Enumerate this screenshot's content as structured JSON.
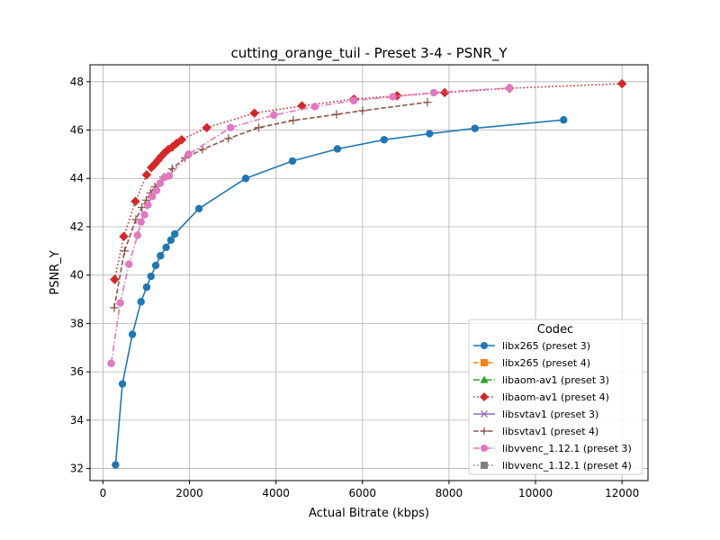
{
  "chart_data": {
    "type": "line",
    "title": "cutting_orange_tuil - Preset 3-4 - PSNR_Y",
    "xlabel": "Actual Bitrate (kbps)",
    "ylabel": "PSNR_Y",
    "xlim": [
      -300,
      12600
    ],
    "ylim": [
      31.5,
      48.7
    ],
    "x_ticks": [
      0,
      2000,
      4000,
      6000,
      8000,
      10000,
      12000
    ],
    "y_ticks": [
      32,
      34,
      36,
      38,
      40,
      42,
      44,
      46,
      48
    ],
    "grid": true,
    "legend": {
      "title": "Codec",
      "position": "lower right"
    },
    "series": [
      {
        "name": "libx265 (preset 3)",
        "color": "#1f77b4",
        "marker": "circle",
        "linestyle": "solid",
        "x": [
          290,
          450,
          680,
          880,
          1010,
          1110,
          1220,
          1330,
          1460,
          1570,
          1660,
          2220,
          3300,
          4380,
          5420,
          6500,
          7550,
          8600,
          10650
        ],
        "y": [
          32.15,
          35.5,
          37.55,
          38.9,
          39.5,
          39.95,
          40.4,
          40.8,
          41.15,
          41.45,
          41.7,
          42.75,
          44.0,
          44.72,
          45.22,
          45.6,
          45.85,
          46.07,
          46.42
        ]
      },
      {
        "name": "libx265 (preset 4)",
        "color": "#ff7f0e",
        "marker": "square",
        "linestyle": "dashed",
        "x": [],
        "y": []
      },
      {
        "name": "libaom-av1 (preset 3)",
        "color": "#2ca02c",
        "marker": "triangle",
        "linestyle": "dashdot",
        "x": [],
        "y": []
      },
      {
        "name": "libaom-av1 (preset 4)",
        "color": "#d62728",
        "marker": "diamond",
        "linestyle": "dotted",
        "x": [
          270,
          480,
          750,
          1010,
          1120,
          1200,
          1270,
          1340,
          1420,
          1510,
          1600,
          1700,
          1820,
          2400,
          3500,
          4600,
          5800,
          6800,
          7900,
          9400,
          12000
        ],
        "y": [
          39.82,
          41.6,
          43.05,
          44.15,
          44.45,
          44.6,
          44.75,
          44.9,
          45.05,
          45.2,
          45.3,
          45.45,
          45.6,
          46.1,
          46.7,
          47.0,
          47.28,
          47.42,
          47.55,
          47.73,
          47.92
        ]
      },
      {
        "name": "libsvtav1 (preset 3)",
        "color": "#9467bd",
        "marker": "x",
        "linestyle": "solid",
        "x": [],
        "y": []
      },
      {
        "name": "libsvtav1 (preset 4)",
        "color": "#8c564b",
        "marker": "plus",
        "linestyle": "dashed",
        "x": [
          260,
          500,
          760,
          900,
          1000,
          1100,
          1200,
          1400,
          1600,
          1900,
          2300,
          2900,
          3600,
          4400,
          5400,
          6000,
          7500
        ],
        "y": [
          38.65,
          41.0,
          42.3,
          42.8,
          43.1,
          43.4,
          43.65,
          44.05,
          44.4,
          44.85,
          45.2,
          45.65,
          46.1,
          46.4,
          46.65,
          46.8,
          47.15
        ]
      },
      {
        "name": "libvvenc_1.12.1 (preset 3)",
        "color": "#e377c2",
        "marker": "circle",
        "linestyle": "dashdot",
        "x": [
          190,
          400,
          600,
          800,
          880,
          960,
          1040,
          1140,
          1240,
          1320,
          1430,
          1530,
          1980,
          2950,
          3950,
          4900,
          5800,
          6700,
          7650,
          9400
        ],
        "y": [
          36.35,
          38.85,
          40.45,
          41.65,
          42.2,
          42.5,
          42.9,
          43.25,
          43.5,
          43.8,
          44.05,
          44.1,
          45.0,
          46.1,
          46.62,
          46.97,
          47.22,
          47.38,
          47.55,
          47.74
        ]
      },
      {
        "name": "libvvenc_1.12.1 (preset 4)",
        "color": "#7f7f7f",
        "marker": "square",
        "linestyle": "dotted",
        "x": [],
        "y": []
      }
    ]
  }
}
